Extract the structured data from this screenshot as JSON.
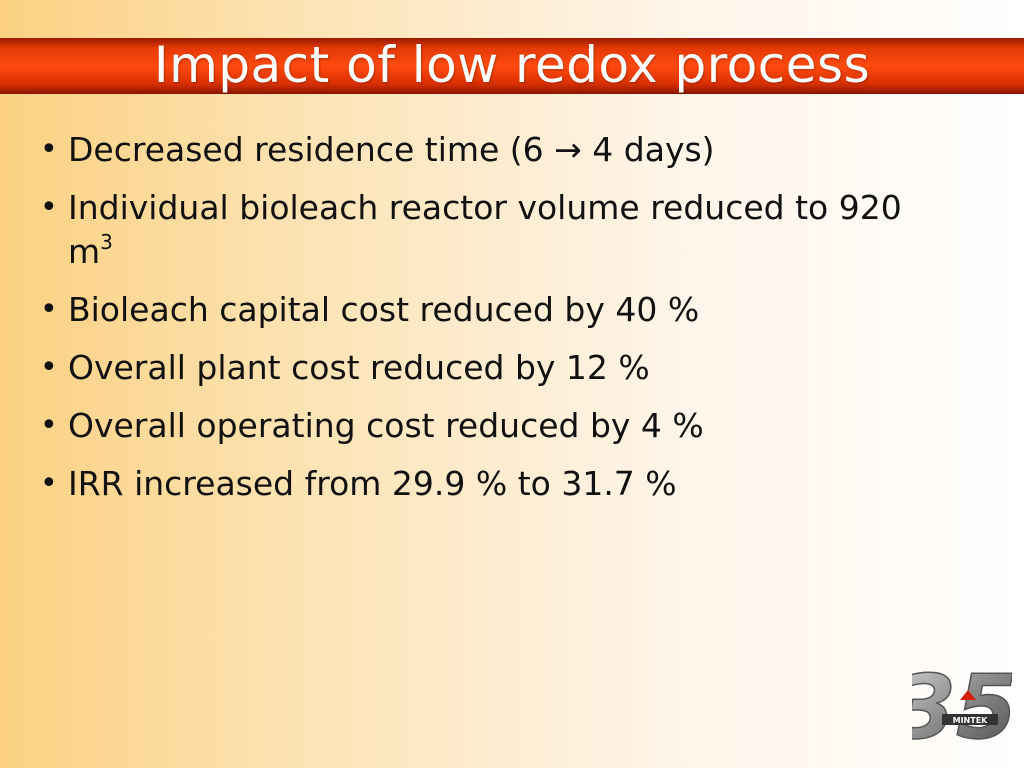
{
  "slide": {
    "title": "Impact of low redox process",
    "bullets": [
      {
        "text": "Decreased residence time (6 → 4 days)"
      },
      {
        "text": "Individual bioleach reactor volume reduced to 920 m",
        "sup": "3"
      },
      {
        "text": "Bioleach capital cost reduced by 40 %"
      },
      {
        "text": "Overall plant cost reduced by 12 %"
      },
      {
        "text": "Overall operating cost reduced by 4 %"
      },
      {
        "text": "IRR increased from 29.9 % to 31.7 %"
      }
    ]
  },
  "logo": {
    "number": "35",
    "name": "MINTEK",
    "icon": "mintek-35-anniversary-logo"
  },
  "colors": {
    "title_bar": "#e33a06",
    "title_text": "#ffffff",
    "body_text": "#111111"
  }
}
